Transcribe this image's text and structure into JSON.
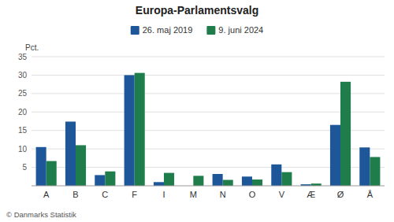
{
  "chart_data": {
    "type": "bar",
    "title": "Europa-Parlamentsvalg",
    "categories": [
      "A",
      "B",
      "C",
      "F",
      "I",
      "M",
      "N",
      "O",
      "V",
      "Æ",
      "Ø",
      "Å"
    ],
    "series": [
      {
        "name": "26. maj 2019",
        "color": "#1e5799",
        "values": [
          10.5,
          17.4,
          2.9,
          30.0,
          1.0,
          0.0,
          3.2,
          2.5,
          5.8,
          0.4,
          16.5,
          10.4
        ]
      },
      {
        "name": "9. juni 2024",
        "color": "#1e7d4b",
        "values": [
          6.7,
          11.0,
          3.9,
          30.6,
          3.5,
          2.7,
          1.6,
          1.7,
          3.7,
          0.6,
          28.2,
          7.8
        ]
      }
    ],
    "y_label": "Pct.",
    "ylim": [
      0,
      35
    ],
    "yticks": [
      5,
      10,
      15,
      20,
      25,
      30,
      35
    ],
    "grid": true,
    "legend": "top",
    "annotations": [
      "© Danmarks Statistik"
    ]
  }
}
